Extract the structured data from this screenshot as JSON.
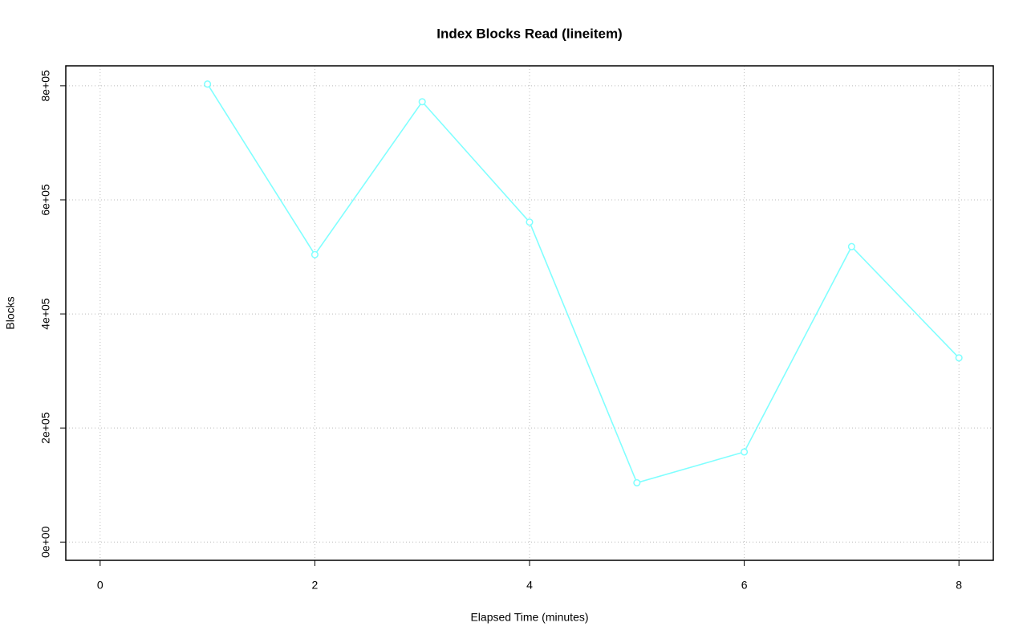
{
  "chart_data": {
    "type": "line",
    "title": "Index Blocks Read (lineitem)",
    "x_label": "Elapsed Time (minutes)",
    "y_label": "Blocks",
    "x": [
      1,
      2,
      3,
      4,
      5,
      6,
      7,
      8
    ],
    "values": [
      803000,
      504000,
      772000,
      561000,
      104000,
      158000,
      518000,
      323000
    ],
    "color": "#80ffff",
    "xlim": [
      -0.32,
      8.32
    ],
    "ylim": [
      -32000,
      835000
    ],
    "xticks": [
      0,
      2,
      4,
      6,
      8
    ],
    "yticks": [
      {
        "value": 0,
        "label": "0e+00"
      },
      {
        "value": 200000,
        "label": "2e+05"
      },
      {
        "value": 400000,
        "label": "4e+05"
      },
      {
        "value": 600000,
        "label": "6e+05"
      },
      {
        "value": 800000,
        "label": "8e+05"
      }
    ],
    "grid": true
  }
}
